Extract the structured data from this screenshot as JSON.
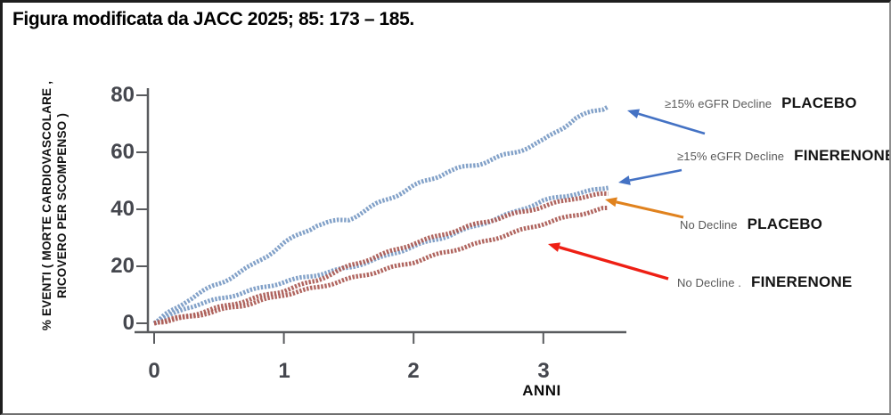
{
  "title": "Figura modificata da JACC 2025; 85: 173 – 185.",
  "colors": {
    "curve_blue": "#7d9dc6",
    "curve_red": "#ad5f58",
    "axis": "#595b5e",
    "tick_label": "#45474e",
    "arrow_blue": "#4472c4",
    "arrow_orange": "#e0821e",
    "arrow_red": "#ee1f14"
  },
  "chart_data": {
    "type": "line",
    "xlabel": "ANNI",
    "ylabel_line1": "%  EVENTI ( MORTE CARDIOVASCOLARE ,",
    "ylabel_line2": "RICOVERO PER SCOMPENSO )",
    "x_ticks": [
      "0",
      "1",
      "2",
      "3"
    ],
    "y_ticks": [
      "80",
      "60",
      "40",
      "20",
      "0"
    ],
    "xlim": [
      0,
      3.65
    ],
    "ylim": [
      0,
      85
    ],
    "grid": false,
    "legend_position": "right",
    "x": [
      0,
      0.25,
      0.5,
      0.75,
      1,
      1.25,
      1.5,
      1.75,
      2,
      2.25,
      2.5,
      2.75,
      3,
      3.25,
      3.5
    ],
    "series": [
      {
        "key": "curve-egfr-decline-placebo",
        "name": "≥15% eGFR Decline PLACEBO",
        "color": "#7d9dc6",
        "values": [
          0,
          8,
          14,
          20,
          28,
          34.5,
          36.5,
          42.5,
          48,
          53,
          56,
          59.5,
          64,
          72,
          76
        ]
      },
      {
        "key": "curve-egfr-decline-finerenone",
        "name": "≥15% eGFR Decline FINERENONE",
        "color": "#7d9dc6",
        "values": [
          0,
          5.5,
          8.5,
          11.5,
          14.5,
          17,
          19.5,
          23,
          27,
          30.5,
          34.5,
          38.5,
          43,
          45.5,
          47.5
        ]
      },
      {
        "key": "curve-no-decline-placebo",
        "name": "No Decline PLACEBO",
        "color": "#ad5f58",
        "values": [
          0,
          2.5,
          5.5,
          8.5,
          11.5,
          15,
          20,
          24,
          28,
          31.5,
          35,
          38,
          41,
          44,
          45.5
        ]
      },
      {
        "key": "curve-no-decline-finerenone",
        "name": "No Decline FINERENONE",
        "color": "#ad5f58",
        "values": [
          0,
          2,
          4.5,
          7,
          10,
          12.5,
          15.5,
          18.5,
          21.5,
          25,
          28,
          31.5,
          35,
          38,
          40.5
        ]
      }
    ]
  },
  "legend": [
    {
      "qualifier": "≥15% eGFR Decline",
      "drug": "PLACEBO",
      "arrow_color": "#4472c4"
    },
    {
      "qualifier": "≥15% eGFR Decline",
      "drug": "FINERENONE",
      "arrow_color": "#4472c4"
    },
    {
      "qualifier": "No Decline",
      "drug": "PLACEBO",
      "arrow_color": "#e0821e"
    },
    {
      "qualifier": "No Decline .",
      "drug": "FINERENONE",
      "arrow_color": "#ee1f14"
    }
  ]
}
